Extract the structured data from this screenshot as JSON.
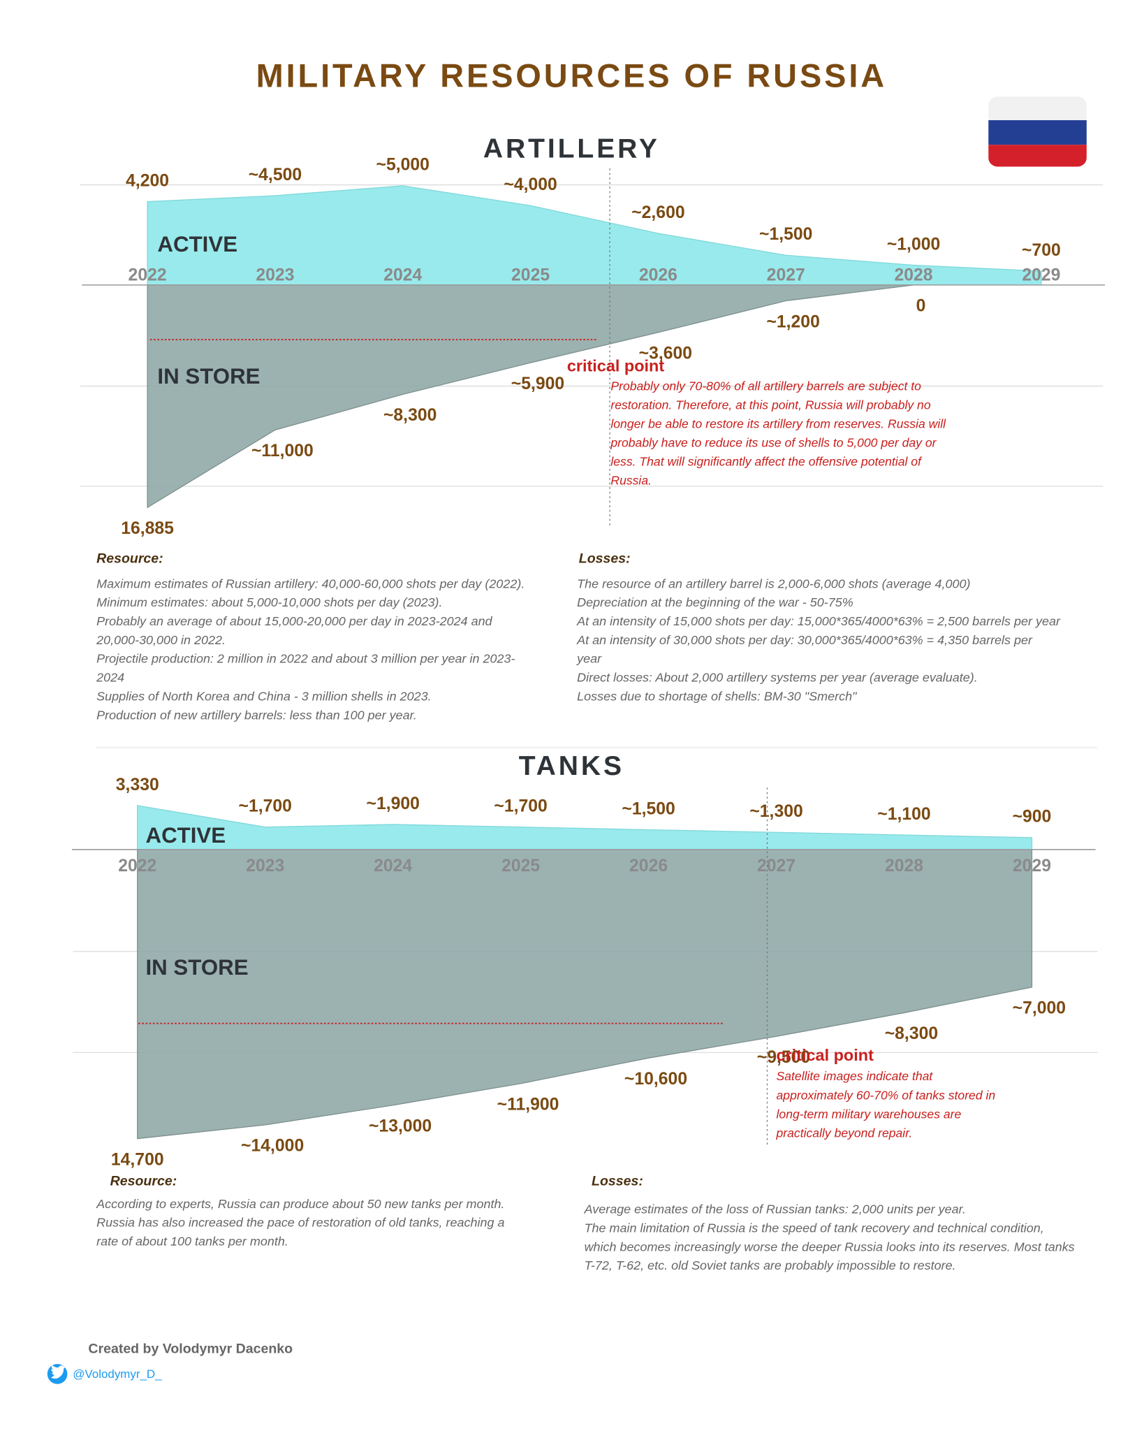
{
  "title": "MILITARY RESOURCES OF RUSSIA",
  "chart_data": [
    {
      "type": "area",
      "title": "ARTILLERY",
      "categories": [
        "2022",
        "2023",
        "2024",
        "2025",
        "2026",
        "2027",
        "2028",
        "2029"
      ],
      "ylim": [
        0,
        5000
      ],
      "y2lim": [
        0,
        17000
      ],
      "series": [
        {
          "name": "ACTIVE",
          "color": "#8ee8ea",
          "values": [
            4200,
            4500,
            5000,
            4000,
            2600,
            1500,
            1000,
            700
          ],
          "value_labels": [
            "4,200",
            "~4,500",
            "~5,000",
            "~4,000",
            "~2,600",
            "~1,500",
            "~1,000",
            "~700"
          ]
        },
        {
          "name": "IN STORE",
          "color": "#8da7a6",
          "axis": "y2",
          "values": [
            16885,
            11000,
            8300,
            5900,
            3600,
            1200,
            0,
            null
          ],
          "value_labels": [
            "16,885",
            "~11,000",
            "~8,300",
            "~5,900",
            "~3,600",
            "~1,200",
            "0",
            null
          ]
        }
      ],
      "annotation": {
        "title": "critical point",
        "lines": [
          "Probably only 70-80% of all artillery barrels are subject to",
          "restoration. Therefore, at this point, Russia will probably no",
          "longer be able to restore its artillery from reserves. Russia will",
          "probably have to reduce its use of shells to 5,000 per day or",
          "less. That will significantly affect the offensive potential of",
          "Russia."
        ]
      },
      "resource": {
        "title": "Resource:",
        "lines": [
          "Maximum estimates of Russian artillery: 40,000-60,000 shots per day (2022).",
          "Minimum estimates: about 5,000-10,000 shots per day (2023).",
          "Probably an average of about 15,000-20,000 per day in 2023-2024 and",
          "20,000-30,000 in 2022.",
          "Projectile production: 2 million in 2022 and about 3 million per year in 2023-",
          "2024",
          "Supplies of North Korea and China - 3 million shells in 2023.",
          "Production of new artillery barrels: less than 100 per year."
        ]
      },
      "losses": {
        "title": "Losses:",
        "lines": [
          "The resource of an artillery barrel is 2,000-6,000 shots (average 4,000)",
          "Depreciation at the beginning of the war - 50-75%",
          "At an intensity of 15,000 shots per day: 15,000*365/4000*63% = 2,500 barrels per year",
          "At an intensity of 30,000 shots per day:  30,000*365/4000*63% = 4,350 barrels per",
          "year",
          "Direct losses: About 2,000 artillery systems per year (average evaluate).",
          "Losses due to shortage of shells: BM-30 \"Smerch\""
        ]
      }
    },
    {
      "type": "area",
      "title": "TANKS",
      "categories": [
        "2022",
        "2023",
        "2024",
        "2025",
        "2026",
        "2027",
        "2028",
        "2029"
      ],
      "ylim": [
        0,
        4000
      ],
      "y2lim": [
        0,
        15000
      ],
      "series": [
        {
          "name": "ACTIVE",
          "color": "#8ee8ea",
          "values": [
            3330,
            1700,
            1900,
            1700,
            1500,
            1300,
            1100,
            900
          ],
          "value_labels": [
            "3,330",
            "~1,700",
            "~1,900",
            "~1,700",
            "~1,500",
            "~1,300",
            "~1,100",
            "~900"
          ]
        },
        {
          "name": "IN STORE",
          "color": "#8da7a6",
          "axis": "y2",
          "values": [
            14700,
            14000,
            13000,
            11900,
            10600,
            9500,
            8300,
            7000
          ],
          "value_labels": [
            "14,700",
            "~14,000",
            "~13,000",
            "~11,900",
            "~10,600",
            "~9,500",
            "~8,300",
            "~7,000"
          ]
        }
      ],
      "annotation": {
        "title": "critical point",
        "lines": [
          "Satellite images indicate that",
          "approximately 60-70% of tanks stored in",
          "long-term military warehouses are",
          "practically beyond repair."
        ]
      },
      "resource": {
        "title": "Resource:",
        "lines": [
          "According to experts, Russia can produce about 50 new tanks per month.",
          "Russia has also increased the pace of restoration of old tanks, reaching a",
          "rate of about 100 tanks per month."
        ]
      },
      "losses": {
        "title": "Losses:",
        "lines": [
          "Average estimates of the loss of Russian tanks: 2,000 units per year.",
          "The main limitation of Russia is the speed of tank recovery and technical condition,",
          "which becomes increasingly worse the deeper Russia looks into its reserves. Most tanks",
          "T-72, T-62, etc. old Soviet tanks are probably impossible to restore."
        ]
      }
    }
  ],
  "credit": "Created by Volodymyr Dacenko",
  "handle": "@Volodymyr_D_"
}
